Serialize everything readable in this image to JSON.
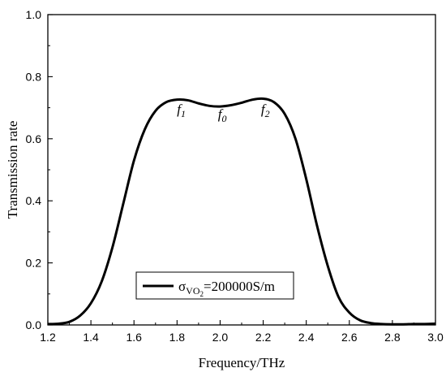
{
  "chart_data": {
    "type": "line",
    "xlabel": "Frequency/THz",
    "ylabel": "Transmission rate",
    "xlim": [
      1.2,
      3.0
    ],
    "ylim": [
      0.0,
      1.0
    ],
    "x_ticks": [
      "1.2",
      "1.4",
      "1.6",
      "1.8",
      "2.0",
      "2.2",
      "2.4",
      "2.6",
      "2.8",
      "3.0"
    ],
    "y_ticks": [
      "0.0",
      "0.2",
      "0.4",
      "0.6",
      "0.8",
      "1.0"
    ],
    "grid": false,
    "legend_position": "bottom-center",
    "series": [
      {
        "legend": {
          "symbol": "σ",
          "subscript": "VO",
          "sub_subscript": "2",
          "value_text": "=200000S/m"
        },
        "color": "#000000",
        "x": [
          1.2,
          1.25,
          1.3,
          1.35,
          1.4,
          1.45,
          1.5,
          1.55,
          1.6,
          1.65,
          1.7,
          1.75,
          1.8,
          1.85,
          1.9,
          1.95,
          2.0,
          2.05,
          2.1,
          2.15,
          2.2,
          2.25,
          2.3,
          2.35,
          2.4,
          2.45,
          2.5,
          2.55,
          2.6,
          2.65,
          2.7,
          2.75,
          2.8,
          2.85,
          2.9,
          2.95,
          3.0
        ],
        "y": [
          0.003,
          0.004,
          0.01,
          0.03,
          0.07,
          0.14,
          0.25,
          0.39,
          0.53,
          0.63,
          0.69,
          0.718,
          0.726,
          0.724,
          0.714,
          0.706,
          0.704,
          0.708,
          0.716,
          0.726,
          0.729,
          0.718,
          0.68,
          0.6,
          0.47,
          0.32,
          0.19,
          0.09,
          0.04,
          0.015,
          0.006,
          0.003,
          0.002,
          0.002,
          0.003,
          0.003,
          0.004
        ]
      }
    ],
    "annotations": [
      {
        "text": "f",
        "subscript": "1",
        "x": 1.82,
        "y": 0.68
      },
      {
        "text": "f",
        "subscript": "0",
        "x": 2.01,
        "y": 0.665
      },
      {
        "text": "f",
        "subscript": "2",
        "x": 2.21,
        "y": 0.68
      }
    ]
  }
}
